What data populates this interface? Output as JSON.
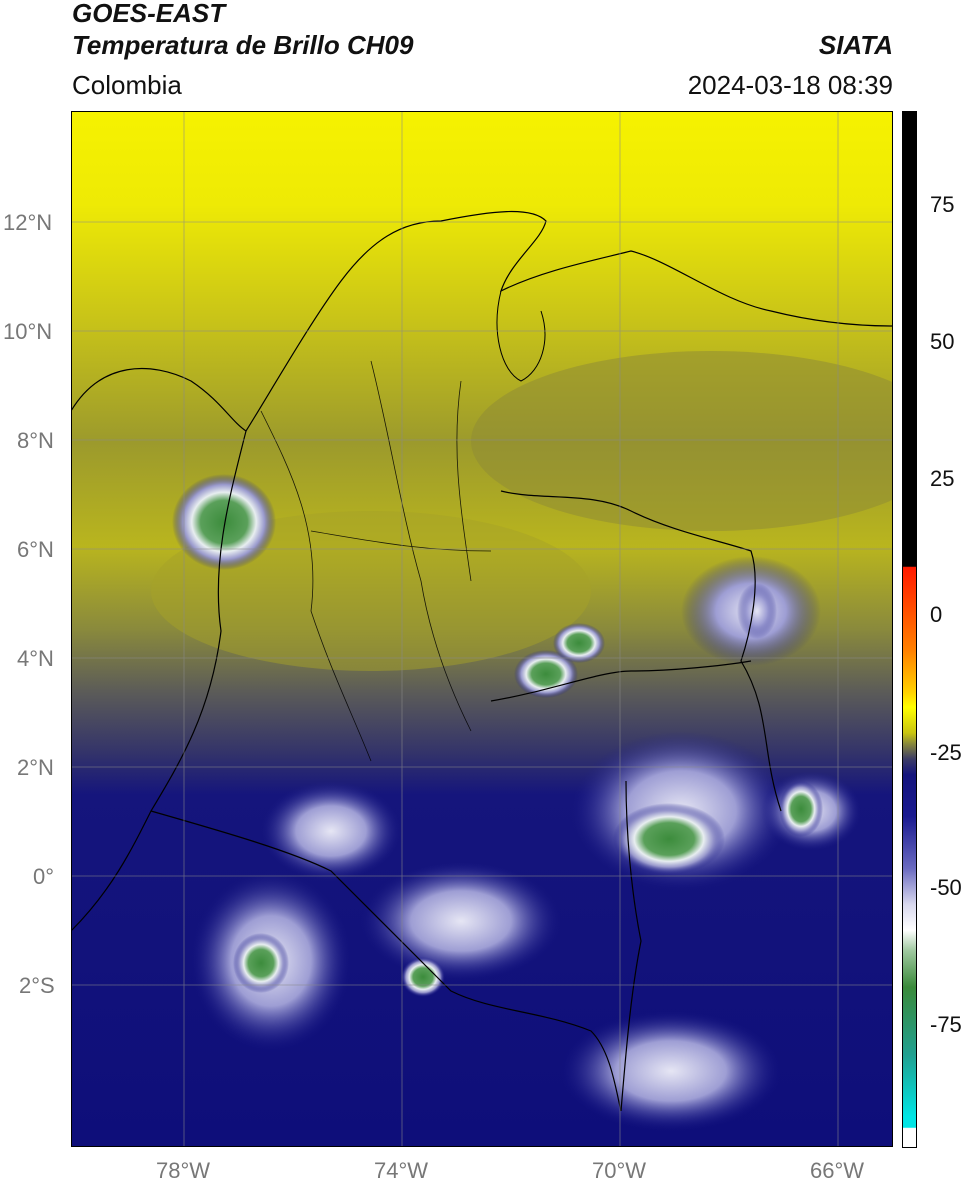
{
  "header": {
    "title_line1": "GOES-EAST",
    "title_line2": "Temperatura de Brillo CH09",
    "organization": "SIATA",
    "region": "Colombia",
    "timestamp": "2024-03-18 08:39"
  },
  "map": {
    "lat_ticks": [
      "12°N",
      "10°N",
      "8°N",
      "6°N",
      "4°N",
      "2°N",
      "0°",
      "2°S"
    ],
    "lon_ticks": [
      "78°W",
      "74°W",
      "70°W",
      "66°W"
    ],
    "grid": true
  },
  "colorbar": {
    "ticks": [
      "75",
      "50",
      "25",
      "0",
      "-25",
      "-50",
      "-75"
    ],
    "colors": {
      "warm_top": "#000000",
      "red": "#ff1a00",
      "orange": "#ff9900",
      "yellow": "#ffff00",
      "olive": "#8a8a2a",
      "navy": "#12127a",
      "white": "#ffffff",
      "green": "#3a8a3a",
      "teal": "#20a090",
      "cyan": "#00e5e5"
    }
  }
}
